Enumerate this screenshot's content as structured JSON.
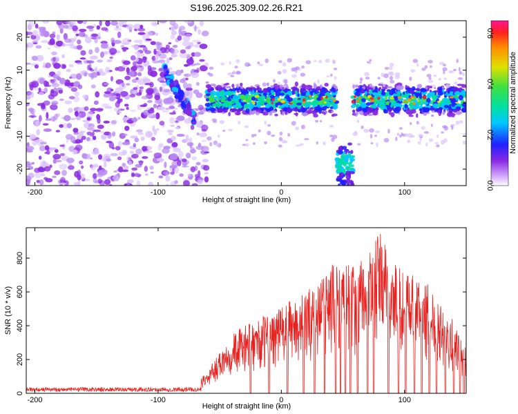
{
  "title": "S196.2025.309.02.26.R21",
  "chart_data": [
    {
      "type": "heatmap",
      "xlabel": "Height of straight line (km)",
      "ylabel": "Frequency (Hz)",
      "xlim": [
        -207,
        150
      ],
      "ylim": [
        -25,
        25
      ],
      "xticks": [
        -200,
        -100,
        0,
        100
      ],
      "yticks": [
        -20,
        -10,
        0,
        10,
        20
      ],
      "colorbar": {
        "label": "Normalized spectral amplitude",
        "range": [
          0,
          0.65
        ],
        "ticks": [
          0.0,
          0.2,
          0.4,
          0.6
        ],
        "tick_labels": [
          "0.0",
          "0.2",
          "0.4",
          "0.6"
        ]
      },
      "features": [
        {
          "region": "noise",
          "x_range": [
            -207,
            -60
          ],
          "freq_range": [
            -25,
            25
          ]
        },
        {
          "region": "descending_trace",
          "x_range": [
            -95,
            -70
          ],
          "freq_range": [
            -5,
            10
          ]
        },
        {
          "region": "tone_band",
          "x_range": [
            -60,
            150
          ],
          "center_freq": 1,
          "half_width": 4
        },
        {
          "region": "dropout_gap",
          "x_range": [
            45,
            58
          ],
          "freq_range": [
            -25,
            25
          ]
        },
        {
          "region": "low_blob",
          "x_range": [
            45,
            58
          ],
          "freq_range": [
            -25,
            -12
          ]
        }
      ]
    },
    {
      "type": "line",
      "xlabel": "Height of straight line (km)",
      "ylabel": "SNR (10 * v/v)",
      "xlim": [
        -207,
        150
      ],
      "ylim": [
        0,
        980
      ],
      "xticks": [
        -200,
        -100,
        0,
        100
      ],
      "yticks": [
        0,
        200,
        400,
        600,
        800
      ],
      "color": "#e8201e",
      "envelope": {
        "x": [
          -207,
          -100,
          -80,
          -60,
          -50,
          -40,
          -30,
          -20,
          -10,
          0,
          10,
          20,
          30,
          40,
          50,
          60,
          70,
          80,
          90,
          100,
          110,
          120,
          130,
          140,
          150
        ],
        "y": [
          30,
          30,
          50,
          120,
          260,
          360,
          400,
          430,
          480,
          520,
          560,
          600,
          680,
          760,
          820,
          750,
          830,
          960,
          800,
          720,
          700,
          640,
          560,
          420,
          260
        ]
      },
      "dropouts_x": [
        -25,
        -10,
        5,
        18,
        27,
        35,
        44,
        48,
        52,
        56,
        62,
        70,
        75,
        87,
        95,
        101,
        108,
        114,
        120,
        126,
        133,
        140,
        145,
        148
      ]
    }
  ]
}
